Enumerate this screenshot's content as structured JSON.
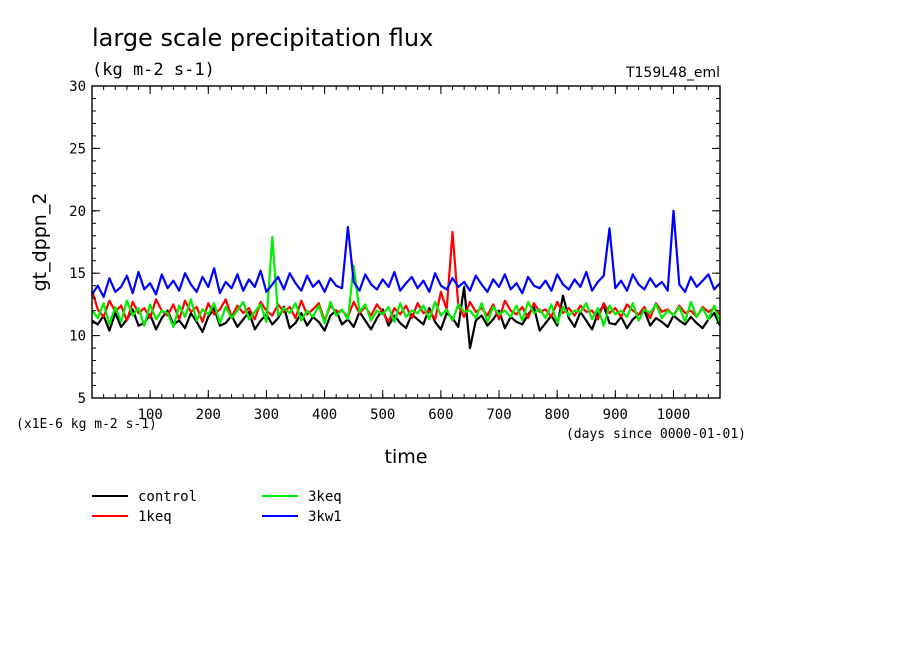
{
  "chart_data": {
    "type": "line",
    "title": "large scale precipitation flux",
    "subtitle": "(kg m-2 s-1)",
    "experiment_tag": "T159L48_eml",
    "xlabel": "time",
    "xunit": "(days since 0000-01-01)",
    "ylabel": "gt_dppn_2",
    "yunit": "(x1E-6 kg m-2 s-1)",
    "xlim": [
      0,
      1080
    ],
    "ylim": [
      5,
      30
    ],
    "xticks": [
      "100",
      "200",
      "300",
      "400",
      "500",
      "600",
      "700",
      "800",
      "900",
      "1000"
    ],
    "yticks": [
      "5",
      "10",
      "15",
      "20",
      "25",
      "30"
    ],
    "x_start": 0,
    "x_step": 10,
    "grid": false,
    "legend_position": "below",
    "series": [
      {
        "name": "control",
        "color": "#000000",
        "values": [
          11.2,
          10.9,
          11.6,
          10.4,
          11.8,
          10.7,
          11.3,
          12.1,
          10.8,
          11.0,
          11.7,
          10.5,
          11.4,
          12.0,
          10.9,
          11.2,
          10.6,
          11.8,
          11.1,
          10.3,
          11.5,
          12.2,
          10.8,
          11.0,
          11.6,
          10.7,
          11.3,
          11.9,
          10.5,
          11.2,
          11.7,
          10.9,
          11.4,
          12.3,
          10.6,
          11.0,
          11.8,
          10.8,
          11.5,
          11.1,
          10.4,
          11.6,
          12.0,
          10.9,
          11.3,
          10.7,
          11.9,
          11.2,
          10.5,
          11.4,
          12.1,
          10.8,
          11.6,
          11.0,
          10.6,
          11.7,
          11.3,
          10.9,
          12.2,
          11.1,
          10.5,
          11.8,
          11.4,
          10.7,
          13.9,
          9.0,
          11.2,
          11.6,
          10.8,
          11.3,
          12.0,
          10.6,
          11.5,
          11.1,
          10.9,
          11.7,
          12.3,
          10.4,
          11.0,
          11.6,
          10.8,
          13.2,
          11.4,
          10.7,
          11.9,
          11.2,
          10.5,
          11.8,
          12.4,
          11.0,
          10.9,
          11.5,
          10.6,
          11.3,
          11.7,
          12.0,
          10.8,
          11.4,
          11.1,
          10.7,
          11.6,
          11.2,
          10.9,
          11.5,
          11.0,
          10.6,
          11.3,
          11.8,
          10.8
        ]
      },
      {
        "name": "1keq",
        "color": "#ff0000",
        "values": [
          13.6,
          12.1,
          11.5,
          12.8,
          11.9,
          12.4,
          11.2,
          12.7,
          11.8,
          12.2,
          11.4,
          12.9,
          12.0,
          11.6,
          12.5,
          11.3,
          12.8,
          11.9,
          12.3,
          11.1,
          12.6,
          11.7,
          12.1,
          12.9,
          11.5,
          12.4,
          11.8,
          12.2,
          11.3,
          12.7,
          12.0,
          11.6,
          12.5,
          11.9,
          12.3,
          11.4,
          12.8,
          11.7,
          12.1,
          12.6,
          11.2,
          12.4,
          11.9,
          12.0,
          11.5,
          12.7,
          11.8,
          12.3,
          11.6,
          12.5,
          11.9,
          11.1,
          12.2,
          11.7,
          12.4,
          11.4,
          12.6,
          11.8,
          12.0,
          11.3,
          13.5,
          12.1,
          18.3,
          12.4,
          11.5,
          12.7,
          11.9,
          12.2,
          11.6,
          12.5,
          11.3,
          12.8,
          12.0,
          11.7,
          12.3,
          11.4,
          12.6,
          11.9,
          12.1,
          11.5,
          12.7,
          11.8,
          12.2,
          11.6,
          12.4,
          11.9,
          12.0,
          11.3,
          12.6,
          11.8,
          12.2,
          11.5,
          12.5,
          12.0,
          11.7,
          12.3,
          11.4,
          12.6,
          11.9,
          12.1,
          11.6,
          12.4,
          11.8,
          12.0,
          11.5,
          12.3,
          11.9,
          12.2,
          11.7
        ]
      },
      {
        "name": "3keq",
        "color": "#00ee00",
        "values": [
          12.0,
          11.4,
          12.6,
          10.9,
          12.3,
          11.1,
          12.8,
          11.6,
          12.2,
          10.8,
          12.5,
          11.3,
          12.0,
          11.8,
          10.7,
          12.4,
          11.5,
          12.9,
          11.2,
          12.1,
          11.7,
          12.6,
          11.0,
          12.3,
          11.4,
          12.0,
          12.7,
          11.3,
          11.9,
          12.5,
          11.1,
          17.9,
          11.6,
          12.2,
          11.8,
          12.6,
          11.2,
          12.0,
          11.5,
          12.4,
          11.0,
          12.7,
          11.6,
          12.1,
          11.3,
          15.6,
          11.9,
          12.5,
          11.2,
          12.0,
          11.7,
          12.3,
          11.1,
          12.6,
          11.5,
          12.0,
          11.8,
          12.4,
          11.3,
          12.7,
          11.6,
          12.1,
          11.2,
          12.5,
          11.9,
          12.0,
          11.4,
          12.6,
          11.1,
          12.3,
          11.7,
          12.0,
          11.5,
          12.4,
          11.2,
          12.7,
          11.8,
          12.1,
          11.4,
          12.5,
          11.0,
          12.3,
          11.6,
          12.0,
          11.9,
          12.6,
          11.3,
          12.2,
          10.8,
          12.4,
          11.7,
          12.0,
          11.5,
          12.6,
          11.2,
          12.1,
          11.8,
          12.5,
          11.4,
          12.0,
          11.6,
          12.3,
          11.1,
          12.7,
          11.5,
          12.2,
          11.3,
          12.4,
          11.0
        ]
      },
      {
        "name": "3kw1",
        "color": "#0000ff",
        "values": [
          13.3,
          14.0,
          13.1,
          14.6,
          13.5,
          13.9,
          14.8,
          13.4,
          15.1,
          13.7,
          14.2,
          13.3,
          14.9,
          13.8,
          14.4,
          13.6,
          15.0,
          14.1,
          13.5,
          14.7,
          13.9,
          15.4,
          13.4,
          14.3,
          13.8,
          14.9,
          13.6,
          14.5,
          13.9,
          15.2,
          13.5,
          14.1,
          14.7,
          13.7,
          15.0,
          14.2,
          13.6,
          14.8,
          13.9,
          14.4,
          13.5,
          14.6,
          14.0,
          13.8,
          18.7,
          14.3,
          13.6,
          14.9,
          14.1,
          13.7,
          14.5,
          13.9,
          15.1,
          13.6,
          14.2,
          14.7,
          13.8,
          14.4,
          13.5,
          15.0,
          14.0,
          13.7,
          14.6,
          13.9,
          14.3,
          13.6,
          14.8,
          14.1,
          13.5,
          14.5,
          13.9,
          14.9,
          13.7,
          14.2,
          13.4,
          14.7,
          14.0,
          13.8,
          14.4,
          13.6,
          14.9,
          14.1,
          13.7,
          14.5,
          13.9,
          15.1,
          13.6,
          14.3,
          14.8,
          18.6,
          13.8,
          14.4,
          13.6,
          14.9,
          14.1,
          13.7,
          14.6,
          13.9,
          14.3,
          13.6,
          20.0,
          14.1,
          13.5,
          14.7,
          13.9,
          14.4,
          14.9,
          13.7,
          14.2
        ]
      }
    ]
  }
}
